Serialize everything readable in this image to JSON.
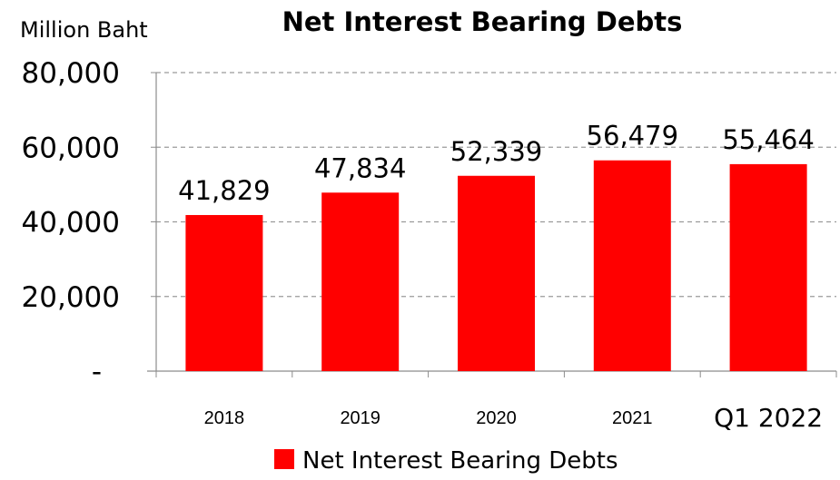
{
  "chart_data": {
    "type": "bar",
    "title": "Net Interest Bearing Debts",
    "ylabel": "Million Baht",
    "xlabel": "",
    "categories": [
      "2018",
      "2019",
      "2020",
      "2021",
      "Q1 2022"
    ],
    "series": [
      {
        "name": "Net Interest Bearing Debts",
        "values": [
          41829,
          47834,
          52339,
          56479,
          55464
        ]
      }
    ],
    "data_labels": [
      "41,829",
      "47,834",
      "52,339",
      "56,479",
      "55,464"
    ],
    "ylim": [
      0,
      80000
    ],
    "yticks": [
      0,
      20000,
      40000,
      60000,
      80000
    ],
    "ytick_labels": [
      "-",
      "20,000",
      "40,000",
      "60,000",
      "80,000"
    ],
    "grid": true,
    "legend": "bottom",
    "colors": {
      "bar": "#ff0000",
      "grid": "#9a9a9a",
      "axis": "#8c8c8c"
    }
  }
}
